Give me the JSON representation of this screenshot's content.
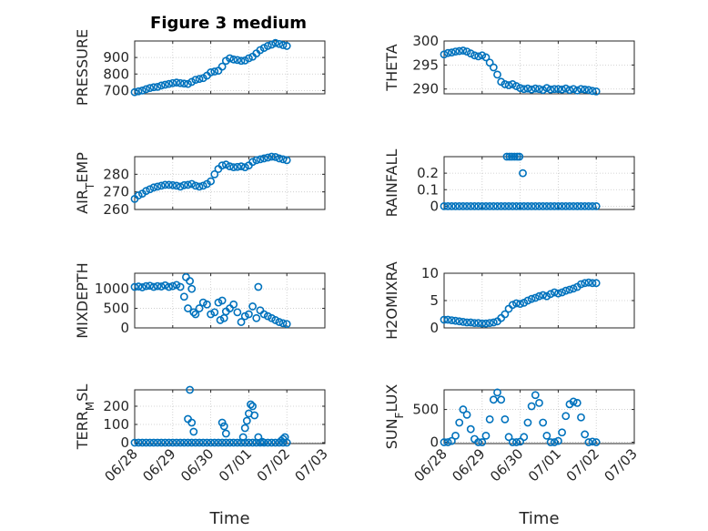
{
  "figure_title": "Figure 3 medium",
  "colors": {
    "marker": "#0072BD",
    "axis": "#262626",
    "grid": "#c8c8c8"
  },
  "chart_data": [
    {
      "type": "scatter",
      "ylabel_parts": [
        [
          "PRESSURE",
          ""
        ]
      ],
      "ylim": [
        680,
        1000
      ],
      "yticks": [
        700,
        800,
        900
      ],
      "xlim": [
        0,
        5
      ],
      "xticklabels": [],
      "grid": true,
      "x": [
        0,
        0.1,
        0.2,
        0.3,
        0.4,
        0.5,
        0.6,
        0.7,
        0.8,
        0.9,
        1.0,
        1.1,
        1.2,
        1.3,
        1.4,
        1.5,
        1.6,
        1.7,
        1.8,
        1.9,
        2.0,
        2.1,
        2.2,
        2.3,
        2.4,
        2.5,
        2.6,
        2.7,
        2.8,
        2.9,
        3.0,
        3.1,
        3.2,
        3.3,
        3.4,
        3.5,
        3.6,
        3.7,
        3.8,
        3.9,
        4.0
      ],
      "y": [
        690,
        695,
        700,
        708,
        715,
        720,
        722,
        730,
        735,
        740,
        745,
        748,
        745,
        742,
        740,
        752,
        765,
        770,
        775,
        790,
        810,
        815,
        820,
        845,
        880,
        895,
        888,
        885,
        880,
        882,
        895,
        905,
        925,
        945,
        958,
        970,
        978,
        988,
        982,
        975,
        970
      ]
    },
    {
      "type": "scatter",
      "ylabel_parts": [
        [
          "THETA",
          ""
        ]
      ],
      "ylim": [
        289,
        300
      ],
      "yticks": [
        290,
        295,
        300
      ],
      "xlim": [
        0,
        5
      ],
      "xticklabels": [],
      "grid": true,
      "x": [
        0,
        0.1,
        0.2,
        0.3,
        0.4,
        0.5,
        0.6,
        0.7,
        0.8,
        0.9,
        1.0,
        1.1,
        1.2,
        1.3,
        1.4,
        1.5,
        1.6,
        1.7,
        1.8,
        1.9,
        2.0,
        2.1,
        2.2,
        2.3,
        2.4,
        2.5,
        2.6,
        2.7,
        2.8,
        2.9,
        3.0,
        3.1,
        3.2,
        3.3,
        3.4,
        3.5,
        3.6,
        3.7,
        3.8,
        3.9,
        4.0
      ],
      "y": [
        297.2,
        297.5,
        297.6,
        297.8,
        297.9,
        298.0,
        297.8,
        297.4,
        297.0,
        296.8,
        297.0,
        296.6,
        295.5,
        294.5,
        293.0,
        291.5,
        291.0,
        290.8,
        291.0,
        290.6,
        290.2,
        290.0,
        290.1,
        289.9,
        290.1,
        290.0,
        289.8,
        290.2,
        289.9,
        290.0,
        290.0,
        289.9,
        290.1,
        289.8,
        290.0,
        289.7,
        290.0,
        289.9,
        289.8,
        289.6,
        289.5
      ]
    },
    {
      "type": "scatter",
      "ylabel_parts": [
        [
          "AIR",
          ""
        ],
        [
          "T",
          "sub"
        ],
        [
          "EMP",
          ""
        ]
      ],
      "ylim": [
        260,
        290
      ],
      "yticks": [
        260,
        270,
        280
      ],
      "xlim": [
        0,
        5
      ],
      "xticklabels": [],
      "grid": true,
      "x": [
        0,
        0.1,
        0.2,
        0.3,
        0.4,
        0.5,
        0.6,
        0.7,
        0.8,
        0.9,
        1.0,
        1.1,
        1.2,
        1.3,
        1.4,
        1.5,
        1.6,
        1.7,
        1.8,
        1.9,
        2.0,
        2.1,
        2.2,
        2.3,
        2.4,
        2.5,
        2.6,
        2.7,
        2.8,
        2.9,
        3.0,
        3.1,
        3.2,
        3.3,
        3.4,
        3.5,
        3.6,
        3.7,
        3.8,
        3.9,
        4.0
      ],
      "y": [
        266,
        268,
        269,
        270.5,
        271.5,
        272.5,
        273,
        273.5,
        274,
        274,
        273.8,
        273.5,
        273,
        273.8,
        274,
        274.5,
        273.5,
        273,
        273.5,
        274.5,
        276,
        280,
        283,
        285,
        285.5,
        284.5,
        284,
        284.2,
        284.5,
        284,
        285,
        287,
        288,
        288.5,
        289,
        289.5,
        290,
        289.8,
        289,
        288.5,
        288
      ]
    },
    {
      "type": "scatter",
      "ylabel_parts": [
        [
          "RAINFALL",
          ""
        ]
      ],
      "ylim": [
        -0.02,
        0.3
      ],
      "yticks": [
        0,
        0.1,
        0.2
      ],
      "xlim": [
        0,
        5
      ],
      "xticklabels": [],
      "grid": true,
      "x": [
        0,
        0.1,
        0.2,
        0.3,
        0.4,
        0.5,
        0.6,
        0.7,
        0.8,
        0.9,
        1.0,
        1.1,
        1.2,
        1.3,
        1.4,
        1.5,
        1.6,
        1.7,
        1.8,
        1.9,
        2.0,
        2.1,
        2.2,
        2.3,
        2.4,
        2.5,
        2.6,
        2.7,
        2.8,
        2.9,
        3.0,
        3.1,
        3.2,
        3.3,
        3.4,
        3.5,
        3.6,
        3.7,
        3.8,
        3.9,
        4.0,
        1.65,
        1.72,
        1.78,
        1.85,
        1.92,
        1.98,
        2.07
      ],
      "y": [
        0,
        0,
        0,
        0,
        0,
        0,
        0,
        0,
        0,
        0,
        0,
        0,
        0,
        0,
        0,
        0,
        0,
        0,
        0,
        0,
        0,
        0,
        0,
        0,
        0,
        0,
        0,
        0,
        0,
        0,
        0,
        0,
        0,
        0,
        0,
        0,
        0,
        0,
        0,
        0,
        0,
        0.3,
        0.3,
        0.3,
        0.3,
        0.3,
        0.3,
        0.2
      ]
    },
    {
      "type": "scatter",
      "ylabel_parts": [
        [
          "MIXDEPTH",
          ""
        ]
      ],
      "ylim": [
        0,
        1400
      ],
      "yticks": [
        0,
        500,
        1000
      ],
      "xlim": [
        0,
        5
      ],
      "xticklabels": [],
      "grid": true,
      "x": [
        0,
        0.1,
        0.2,
        0.3,
        0.4,
        0.5,
        0.6,
        0.7,
        0.8,
        0.9,
        1.0,
        1.1,
        1.2,
        1.3,
        1.4,
        1.5,
        1.6,
        1.7,
        1.8,
        1.9,
        2.0,
        2.1,
        2.2,
        2.3,
        2.4,
        2.5,
        2.6,
        2.7,
        2.8,
        2.9,
        3.0,
        3.1,
        3.2,
        3.3,
        3.4,
        3.5,
        3.6,
        3.7,
        3.8,
        3.9,
        4.0,
        1.35,
        1.45,
        1.55,
        2.25,
        2.35,
        3.25
      ],
      "y": [
        1050,
        1060,
        1040,
        1070,
        1080,
        1050,
        1070,
        1060,
        1090,
        1050,
        1070,
        1100,
        1050,
        800,
        500,
        1000,
        350,
        500,
        650,
        600,
        350,
        400,
        650,
        700,
        420,
        500,
        600,
        400,
        150,
        300,
        350,
        550,
        250,
        450,
        350,
        300,
        250,
        200,
        150,
        120,
        100,
        1300,
        1200,
        400,
        200,
        250,
        1050
      ]
    },
    {
      "type": "scatter",
      "ylabel_parts": [
        [
          "H2OMIXRA",
          ""
        ]
      ],
      "ylim": [
        0,
        10
      ],
      "yticks": [
        0,
        5,
        10
      ],
      "xlim": [
        0,
        5
      ],
      "xticklabels": [],
      "grid": true,
      "x": [
        0,
        0.1,
        0.2,
        0.3,
        0.4,
        0.5,
        0.6,
        0.7,
        0.8,
        0.9,
        1.0,
        1.1,
        1.2,
        1.3,
        1.4,
        1.5,
        1.6,
        1.7,
        1.8,
        1.9,
        2.0,
        2.1,
        2.2,
        2.3,
        2.4,
        2.5,
        2.6,
        2.7,
        2.8,
        2.9,
        3.0,
        3.1,
        3.2,
        3.3,
        3.4,
        3.5,
        3.6,
        3.7,
        3.8,
        3.9,
        4.0
      ],
      "y": [
        1.5,
        1.5,
        1.4,
        1.3,
        1.2,
        1.1,
        1.0,
        1.0,
        0.9,
        0.9,
        0.8,
        0.8,
        0.9,
        1.0,
        1.2,
        1.8,
        2.5,
        3.5,
        4.2,
        4.5,
        4.4,
        4.6,
        5.0,
        5.3,
        5.5,
        5.8,
        6.0,
        5.8,
        6.2,
        6.5,
        6.3,
        6.5,
        6.8,
        7.0,
        7.2,
        7.5,
        8.0,
        8.2,
        8.3,
        8.2,
        8.2
      ]
    },
    {
      "type": "scatter",
      "ylabel_parts": [
        [
          "TERR",
          ""
        ],
        [
          "M",
          "sub"
        ],
        [
          "SL",
          ""
        ]
      ],
      "ylim": [
        -5,
        290
      ],
      "yticks": [
        0,
        100,
        200
      ],
      "xlim": [
        0,
        5
      ],
      "xticklabels": [
        "06/28",
        "06/29",
        "06/30",
        "07/01",
        "07/02",
        "07/03"
      ],
      "xlabel": "Time",
      "grid": true,
      "x": [
        0,
        0.1,
        0.2,
        0.3,
        0.4,
        0.5,
        0.6,
        0.7,
        0.8,
        0.9,
        1.0,
        1.1,
        1.2,
        1.3,
        1.4,
        1.5,
        1.6,
        1.7,
        1.8,
        1.9,
        2.0,
        2.1,
        2.2,
        2.3,
        2.4,
        2.5,
        2.6,
        2.7,
        2.8,
        2.9,
        3.0,
        3.1,
        3.2,
        3.3,
        3.4,
        3.5,
        3.6,
        3.7,
        3.8,
        3.9,
        4.0,
        1.4,
        1.45,
        1.5,
        1.55,
        2.3,
        2.35,
        2.4,
        2.85,
        2.9,
        2.95,
        3.0,
        3.05,
        3.1,
        3.15,
        3.25,
        3.35,
        3.85,
        3.9,
        3.95
      ],
      "y": [
        0,
        0,
        0,
        0,
        0,
        0,
        0,
        0,
        0,
        0,
        0,
        0,
        0,
        0,
        0,
        0,
        0,
        0,
        0,
        0,
        0,
        0,
        0,
        0,
        0,
        0,
        0,
        0,
        0,
        0,
        0,
        0,
        0,
        0,
        0,
        0,
        0,
        0,
        0,
        0,
        0,
        130,
        290,
        110,
        60,
        110,
        90,
        50,
        30,
        80,
        120,
        160,
        210,
        200,
        150,
        30,
        5,
        10,
        20,
        30
      ]
    },
    {
      "type": "scatter",
      "ylabel_parts": [
        [
          "SUN",
          ""
        ],
        [
          "F",
          "sub"
        ],
        [
          "LUX",
          ""
        ]
      ],
      "ylim": [
        -20,
        800
      ],
      "yticks": [
        0,
        500
      ],
      "xlim": [
        0,
        5
      ],
      "xticklabels": [
        "06/28",
        "06/29",
        "06/30",
        "07/01",
        "07/02",
        "07/03"
      ],
      "xlabel": "Time",
      "grid": true,
      "x": [
        0,
        0.1,
        0.2,
        0.3,
        0.4,
        0.5,
        0.6,
        0.7,
        0.8,
        0.9,
        1.0,
        1.1,
        1.2,
        1.3,
        1.4,
        1.5,
        1.6,
        1.7,
        1.8,
        1.9,
        2.0,
        2.1,
        2.2,
        2.3,
        2.4,
        2.5,
        2.6,
        2.7,
        2.8,
        2.9,
        3.0,
        3.1,
        3.2,
        3.3,
        3.4,
        3.5,
        3.6,
        3.7,
        3.8,
        3.9,
        4.0
      ],
      "y": [
        0,
        0,
        20,
        100,
        300,
        500,
        420,
        200,
        50,
        0,
        0,
        100,
        350,
        650,
        760,
        650,
        350,
        80,
        0,
        0,
        10,
        80,
        300,
        550,
        720,
        600,
        300,
        100,
        0,
        0,
        20,
        150,
        400,
        580,
        620,
        600,
        380,
        120,
        0,
        10,
        0
      ]
    }
  ]
}
